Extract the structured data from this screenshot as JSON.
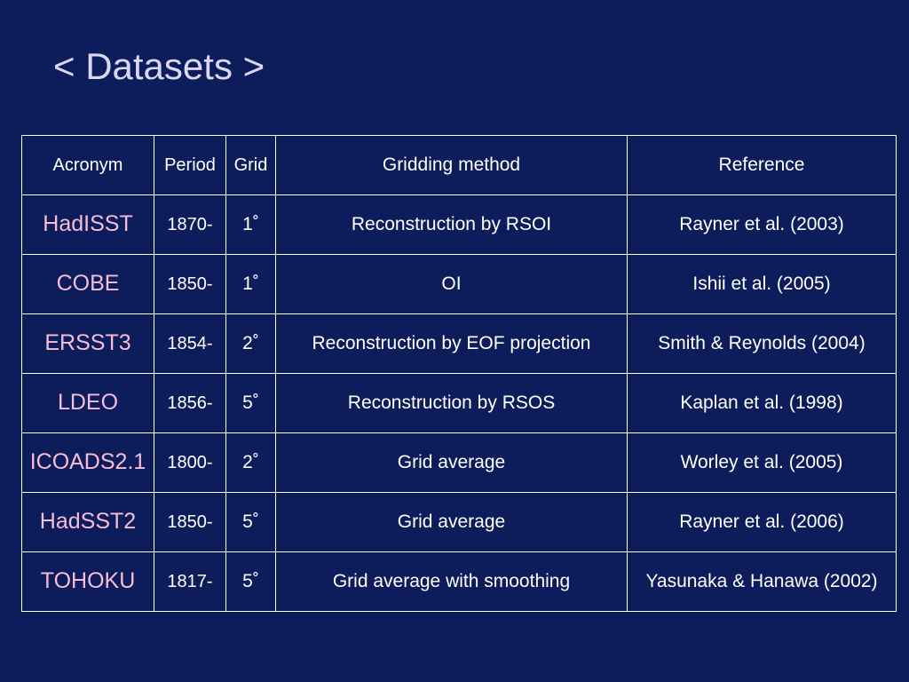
{
  "slide": {
    "title": "< Datasets >"
  },
  "table": {
    "headers": [
      "Acronym",
      "Period",
      "Grid",
      "Gridding method",
      "Reference"
    ],
    "rows": [
      {
        "acronym": "HadISST",
        "period": "1870-",
        "grid": "1˚",
        "method": "Reconstruction by RSOI",
        "reference": "Rayner et al. (2003)"
      },
      {
        "acronym": "COBE",
        "period": "1850-",
        "grid": "1˚",
        "method": "OI",
        "reference": "Ishii et al. (2005)"
      },
      {
        "acronym": "ERSST3",
        "period": "1854-",
        "grid": "2˚",
        "method": "Reconstruction by EOF projection",
        "reference": "Smith & Reynolds (2004)"
      },
      {
        "acronym": "LDEO",
        "period": "1856-",
        "grid": "5˚",
        "method": "Reconstruction by RSOS",
        "reference": "Kaplan et al. (1998)"
      },
      {
        "acronym": "ICOADS2.1",
        "period": "1800-",
        "grid": "2˚",
        "method": "Grid average",
        "reference": "Worley et al. (2005)"
      },
      {
        "acronym": "HadSST2",
        "period": "1850-",
        "grid": "5˚",
        "method": "Grid average",
        "reference": "Rayner et al. (2006)"
      },
      {
        "acronym": "TOHOKU",
        "period": "1817-",
        "grid": "5˚",
        "method": "Grid average with smoothing",
        "reference": "Yasunaka & Hanawa (2002)"
      }
    ]
  },
  "colors": {
    "background": "#0d1d5b",
    "title": "#dcd7f0",
    "acronym": "#f6bdd6",
    "text": "#ffffff"
  }
}
